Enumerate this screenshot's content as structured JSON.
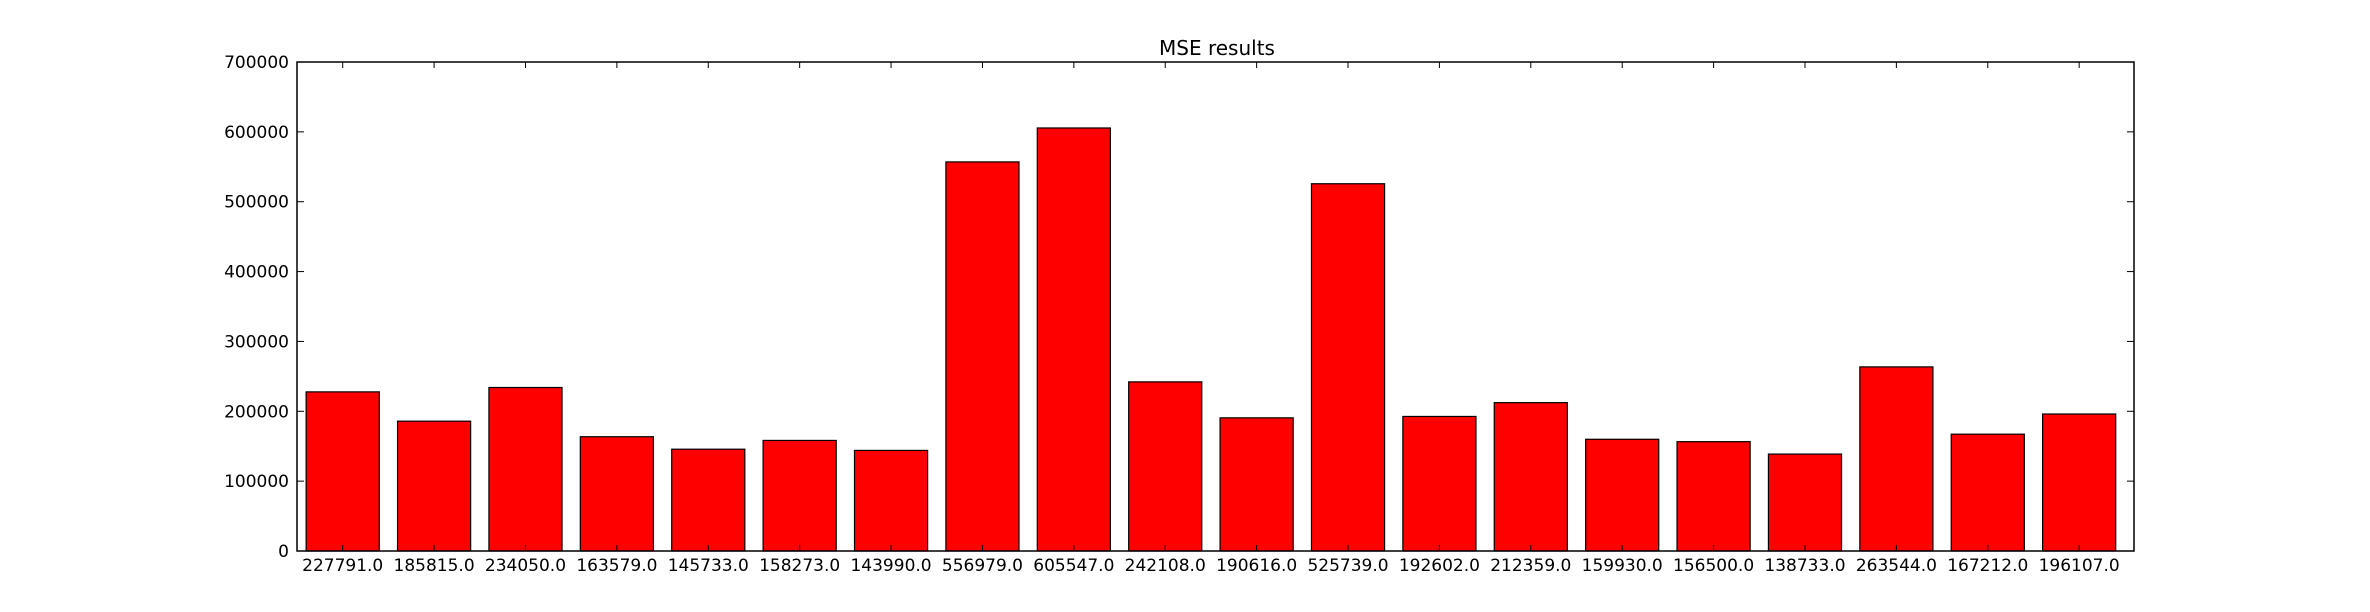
{
  "chart_data": {
    "type": "bar",
    "title": "MSE results",
    "xlabel": "",
    "ylabel": "",
    "categories": [
      "227791.0",
      "185815.0",
      "234050.0",
      "163579.0",
      "145733.0",
      "158273.0",
      "143990.0",
      "556979.0",
      "605547.0",
      "242108.0",
      "190616.0",
      "525739.0",
      "192602.0",
      "212359.0",
      "159930.0",
      "156500.0",
      "138733.0",
      "263544.0",
      "167212.0",
      "196107.0"
    ],
    "values": [
      227791,
      185815,
      234050,
      163579,
      145733,
      158273,
      143990,
      556979,
      605547,
      242108,
      190616,
      525739,
      192602,
      212359,
      159930,
      156500,
      138733,
      263544,
      167212,
      196107
    ],
    "ylim": [
      0,
      700000
    ],
    "yticks": [
      0,
      100000,
      200000,
      300000,
      400000,
      500000,
      600000,
      700000
    ],
    "ytick_labels": [
      "0",
      "100000",
      "200000",
      "300000",
      "400000",
      "500000",
      "600000",
      "700000"
    ],
    "grid": false,
    "colors": {
      "bar": "#ff0000",
      "edge": "#000000"
    }
  }
}
